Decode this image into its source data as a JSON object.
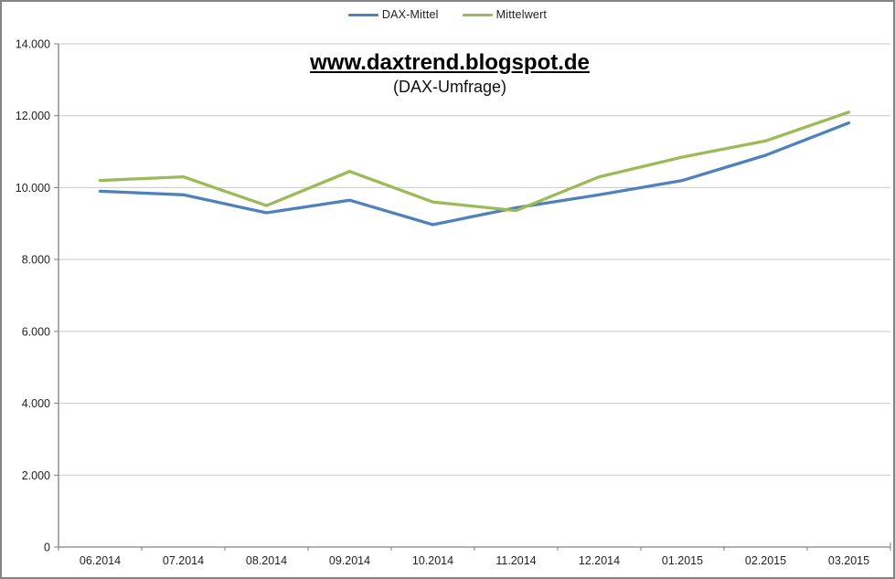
{
  "page": {
    "background_color": "#ffffff",
    "border_color": "#848484"
  },
  "title": {
    "text": "www.daxtrend.blogspot.de",
    "subtitle": "(DAX-Umfrage)"
  },
  "legend": {
    "position": "top-center",
    "items": [
      {
        "label": "DAX-Mittel",
        "color": "#4F81BD"
      },
      {
        "label": "Mittelwert",
        "color": "#9BBB59"
      }
    ]
  },
  "chart_data": {
    "type": "line",
    "title": "www.daxtrend.blogspot.de",
    "subtitle": "(DAX-Umfrage)",
    "categories": [
      "06.2014",
      "07.2014",
      "08.2014",
      "09.2014",
      "10.2014",
      "11.2014",
      "12.2014",
      "01.2015",
      "02.2015",
      "03.2015"
    ],
    "series": [
      {
        "name": "DAX-Mittel",
        "color": "#4F81BD",
        "values": [
          9900,
          9800,
          9300,
          9650,
          8970,
          9440,
          9800,
          10200,
          10900,
          11800
        ]
      },
      {
        "name": "Mittelwert",
        "color": "#9BBB59",
        "values": [
          10200,
          10300,
          9500,
          10450,
          9600,
          9360,
          10300,
          10850,
          11300,
          12100
        ]
      }
    ],
    "xlabel": "",
    "ylabel": "",
    "ylim": [
      0,
      14000
    ],
    "ytick_step": 2000,
    "ytick_labels": [
      "0",
      "2.000",
      "4.000",
      "6.000",
      "8.000",
      "10.000",
      "12.000",
      "14.000"
    ],
    "grid": true,
    "gridline_color": "#c9c9c9",
    "axis_color": "#808080",
    "legend_position": "top"
  }
}
